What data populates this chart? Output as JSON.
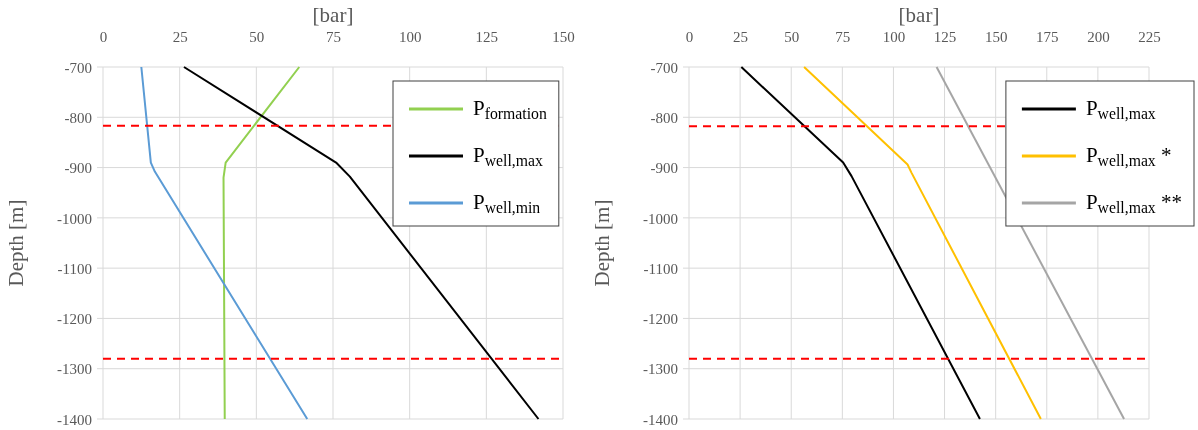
{
  "chart_data": [
    {
      "type": "line",
      "xlabel": "[bar]",
      "ylabel": "Depth [m]",
      "xlim": [
        0,
        150
      ],
      "xticks": [
        0,
        25,
        50,
        75,
        100,
        125,
        150
      ],
      "ylim": [
        -1400,
        -700
      ],
      "yticks": [
        -1400,
        -1300,
        -1200,
        -1100,
        -1000,
        -900,
        -800,
        -700
      ],
      "grid": true,
      "legend": "top right",
      "line_style": "solid",
      "marker": "none",
      "series": [
        {
          "name": "P$_{formation}$",
          "color": "#92d050",
          "x": [
            64,
            40,
            39.3,
            39.7
          ],
          "values": [
            -700,
            -890,
            -920,
            -1400
          ]
        },
        {
          "name": "P$_{well,max}$",
          "color": "#000000",
          "x": [
            26.4,
            76,
            80.5,
            142
          ],
          "values": [
            -700,
            -890,
            -918,
            -1400
          ]
        },
        {
          "name": "P$_{well,min}$",
          "color": "#5b9bd5",
          "x": [
            12.5,
            15.6,
            16.9,
            66.6
          ],
          "values": [
            -700,
            -890,
            -908,
            -1400
          ]
        }
      ],
      "ref_lines": [
        {
          "axis": "y",
          "value": -817,
          "color": "#ff0000",
          "line_style": "dashed"
        },
        {
          "axis": "y",
          "value": -1280,
          "color": "#ff0000",
          "line_style": "dashed"
        }
      ]
    },
    {
      "type": "line",
      "xlabel": "[bar]",
      "ylabel": "Depth [m]",
      "xlim": [
        0,
        225
      ],
      "xticks": [
        0,
        25,
        50,
        75,
        100,
        125,
        150,
        175,
        200,
        225
      ],
      "ylim": [
        -1400,
        -700
      ],
      "yticks": [
        -1400,
        -1300,
        -1200,
        -1100,
        -1000,
        -900,
        -800,
        -700
      ],
      "grid": true,
      "legend": "top right",
      "line_style": "solid",
      "marker": "none",
      "series": [
        {
          "name": "P$_{well,max}$",
          "color": "#000000",
          "x": [
            25.6,
            75.4,
            79.5,
            142.3
          ],
          "values": [
            -700,
            -890,
            -917,
            -1400
          ]
        },
        {
          "name": "P$_{well,max}$ *",
          "color": "#ffc000",
          "x": [
            56.3,
            106.9,
            108.8,
            172.1
          ],
          "values": [
            -700,
            -894,
            -910,
            -1400
          ]
        },
        {
          "name": "P$_{well,max}$ **",
          "color": "#a5a5a5",
          "x": [
            121.1,
            212.8
          ],
          "values": [
            -700,
            -1400
          ]
        }
      ],
      "ref_lines": [
        {
          "axis": "y",
          "value": -818,
          "color": "#ff0000",
          "line_style": "dashed"
        },
        {
          "axis": "y",
          "value": -1280,
          "color": "#ff0000",
          "line_style": "dashed"
        }
      ]
    }
  ]
}
